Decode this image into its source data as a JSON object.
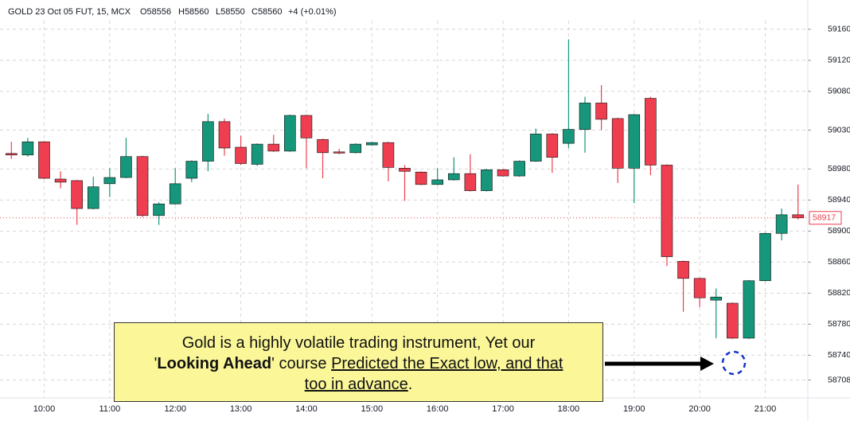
{
  "chart_data": {
    "type": "candlestick",
    "title": {
      "symbol": "GOLD 23 Oct 05 FUT, 15, MCX",
      "open": "O58556",
      "high": "H58560",
      "low": "L58550",
      "close": "C58560",
      "change": "+4 (+0.01%)"
    },
    "categories": [
      null,
      null,
      "10:00",
      null,
      null,
      null,
      "11:00",
      null,
      null,
      null,
      "12:00",
      null,
      null,
      null,
      "13:00",
      null,
      null,
      null,
      "14:00",
      null,
      null,
      null,
      "15:00",
      null,
      null,
      null,
      "16:00",
      null,
      null,
      null,
      "17:00",
      null,
      null,
      null,
      "18:00",
      null,
      null,
      null,
      "19:00",
      null,
      null,
      null,
      "20:00",
      null,
      null,
      null,
      "21:00",
      null,
      null
    ],
    "open": [
      59000,
      58998,
      59015,
      58967,
      58965,
      58929,
      58961,
      58969,
      58996,
      58920,
      58935,
      58968,
      58990,
      59041,
      59008,
      58986,
      59012,
      59003,
      59049,
      59018,
      59002,
      59001,
      59011,
      59014,
      58981,
      58976,
      58960,
      58966,
      58974,
      58952,
      58979,
      58971,
      58990,
      59025,
      59013,
      59031,
      59065,
      59045,
      58981,
      59071,
      58985,
      58861,
      58839,
      58811,
      58807,
      58762,
      58836,
      58897,
      58921
    ],
    "high": [
      59015,
      59020,
      59016,
      58977,
      58966,
      58970,
      58981,
      59020,
      58997,
      58937,
      58981,
      58991,
      59051,
      59045,
      59023,
      59013,
      59024,
      59050,
      59050,
      59019,
      59006,
      59013,
      59015,
      59015,
      58985,
      58977,
      58981,
      58995,
      58999,
      58980,
      58980,
      58991,
      59032,
      59026,
      59147,
      59073,
      59088,
      59046,
      59051,
      59073,
      58986,
      58862,
      58840,
      58826,
      58808,
      58837,
      58898,
      58929,
      58960
    ],
    "low": [
      58993,
      58996,
      58967,
      58955,
      58908,
      58928,
      58944,
      58968,
      58918,
      58908,
      58934,
      58963,
      58977,
      58997,
      58985,
      58984,
      59002,
      59002,
      58981,
      58968,
      58999,
      59000,
      59010,
      58964,
      58939,
      58959,
      58959,
      58965,
      58951,
      58951,
      58970,
      58970,
      58989,
      58975,
      59007,
      59001,
      59030,
      58962,
      58936,
      58972,
      58855,
      58796,
      58802,
      58762,
      58761,
      58761,
      58835,
      58888,
      58915
    ],
    "close": [
      58998,
      59015,
      58968,
      58963,
      58929,
      58957,
      58969,
      58996,
      58920,
      58935,
      58961,
      58990,
      59041,
      59007,
      58987,
      59012,
      59003,
      59049,
      59020,
      59001,
      59001,
      59012,
      59014,
      58982,
      58977,
      58960,
      58966,
      58974,
      58952,
      58979,
      58971,
      58990,
      59025,
      58995,
      59031,
      59065,
      59044,
      58981,
      59050,
      58985,
      58867,
      58839,
      58814,
      58815,
      58762,
      58836,
      58897,
      58921,
      58917
    ],
    "up_color": "#16967a",
    "down_color": "#ee3e4f",
    "ylim": [
      58685,
      59169
    ],
    "yticks": [
      59160,
      59120,
      59080,
      59030,
      58980,
      58940,
      58900,
      58860,
      58820,
      58780,
      58740,
      58708
    ],
    "grid": true,
    "annotation": {
      "line1": "Gold is a highly volatile trading instrument, Yet our",
      "quote_open": "'",
      "bold": "Looking Ahead",
      "mid": "' course ",
      "underline1": "Predicted the Exact low, and that",
      "underline2": "too in advance",
      "end": "."
    }
  }
}
